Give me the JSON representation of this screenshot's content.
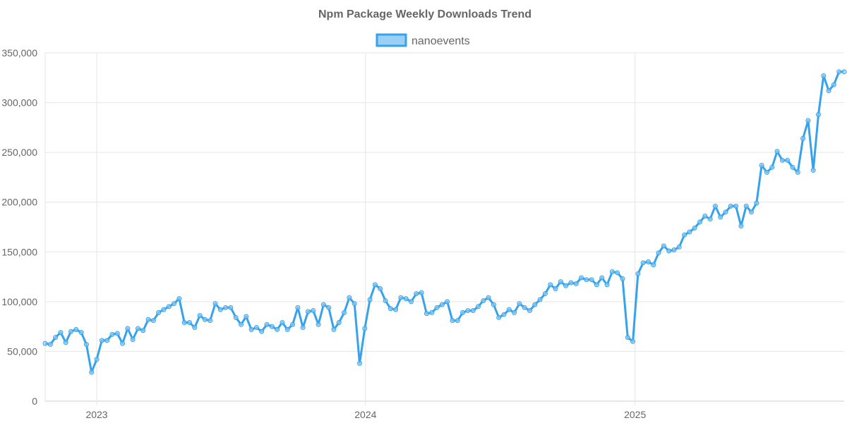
{
  "chart_data": {
    "type": "line",
    "title": "Npm Package Weekly Downloads Trend",
    "xlabel": "",
    "ylabel": "",
    "legend": {
      "position": "top",
      "entries": [
        "nanoevents"
      ]
    },
    "grid": true,
    "ylim": [
      0,
      350000
    ],
    "yticks": [
      "0",
      "50,000",
      "100,000",
      "150,000",
      "200,000",
      "250,000",
      "300,000",
      "350,000"
    ],
    "ytick_values": [
      0,
      50000,
      100000,
      150000,
      200000,
      250000,
      300000,
      350000
    ],
    "xticks": [
      {
        "label": "2023",
        "date": "2023-01-01"
      },
      {
        "label": "2024",
        "date": "2024-01-01"
      },
      {
        "label": "2025",
        "date": "2025-01-01"
      }
    ],
    "xlim": [
      "2022-10-23",
      "2025-10-12"
    ],
    "colors": {
      "line": "#36a2eb",
      "fill": "#9ad0f5",
      "grid": "#e5e5e5",
      "text": "#666666"
    },
    "x": [
      "2022-10-23",
      "2022-10-30",
      "2022-11-06",
      "2022-11-13",
      "2022-11-20",
      "2022-11-27",
      "2022-12-04",
      "2022-12-11",
      "2022-12-18",
      "2022-12-25",
      "2023-01-01",
      "2023-01-08",
      "2023-01-15",
      "2023-01-22",
      "2023-01-29",
      "2023-02-05",
      "2023-02-12",
      "2023-02-19",
      "2023-02-26",
      "2023-03-05",
      "2023-03-12",
      "2023-03-19",
      "2023-03-26",
      "2023-04-02",
      "2023-04-09",
      "2023-04-16",
      "2023-04-23",
      "2023-04-30",
      "2023-05-07",
      "2023-05-14",
      "2023-05-21",
      "2023-05-28",
      "2023-06-04",
      "2023-06-11",
      "2023-06-18",
      "2023-06-25",
      "2023-07-02",
      "2023-07-09",
      "2023-07-16",
      "2023-07-23",
      "2023-07-30",
      "2023-08-06",
      "2023-08-13",
      "2023-08-20",
      "2023-08-27",
      "2023-09-03",
      "2023-09-10",
      "2023-09-17",
      "2023-09-24",
      "2023-10-01",
      "2023-10-08",
      "2023-10-15",
      "2023-10-22",
      "2023-10-29",
      "2023-11-05",
      "2023-11-12",
      "2023-11-19",
      "2023-11-26",
      "2023-12-03",
      "2023-12-10",
      "2023-12-17",
      "2023-12-24",
      "2023-12-31",
      "2024-01-07",
      "2024-01-14",
      "2024-01-21",
      "2024-01-28",
      "2024-02-04",
      "2024-02-11",
      "2024-02-18",
      "2024-02-25",
      "2024-03-03",
      "2024-03-10",
      "2024-03-17",
      "2024-03-24",
      "2024-03-31",
      "2024-04-07",
      "2024-04-14",
      "2024-04-21",
      "2024-04-28",
      "2024-05-05",
      "2024-05-12",
      "2024-05-19",
      "2024-05-26",
      "2024-06-02",
      "2024-06-09",
      "2024-06-16",
      "2024-06-23",
      "2024-06-30",
      "2024-07-07",
      "2024-07-14",
      "2024-07-21",
      "2024-07-28",
      "2024-08-04",
      "2024-08-11",
      "2024-08-18",
      "2024-08-25",
      "2024-09-01",
      "2024-09-08",
      "2024-09-15",
      "2024-09-22",
      "2024-09-29",
      "2024-10-06",
      "2024-10-13",
      "2024-10-20",
      "2024-10-27",
      "2024-11-03",
      "2024-11-10",
      "2024-11-17",
      "2024-11-24",
      "2024-12-01",
      "2024-12-08",
      "2024-12-15",
      "2024-12-22",
      "2024-12-29",
      "2025-01-05",
      "2025-01-12",
      "2025-01-19",
      "2025-01-26",
      "2025-02-02",
      "2025-02-09",
      "2025-02-16",
      "2025-02-23",
      "2025-03-02",
      "2025-03-09",
      "2025-03-16",
      "2025-03-23",
      "2025-03-30",
      "2025-04-06",
      "2025-04-13",
      "2025-04-20",
      "2025-04-27",
      "2025-05-04",
      "2025-05-11",
      "2025-05-18",
      "2025-05-25",
      "2025-06-01",
      "2025-06-08",
      "2025-06-15",
      "2025-06-22",
      "2025-06-29",
      "2025-07-06",
      "2025-07-13",
      "2025-07-20",
      "2025-07-27",
      "2025-08-03",
      "2025-08-10",
      "2025-08-17",
      "2025-08-24",
      "2025-08-31",
      "2025-09-07",
      "2025-09-14",
      "2025-09-21",
      "2025-09-28",
      "2025-10-05",
      "2025-10-12"
    ],
    "series": [
      {
        "name": "nanoevents",
        "values": [
          58000,
          57000,
          64000,
          69000,
          59000,
          70000,
          72000,
          69000,
          57000,
          29000,
          42000,
          61000,
          61000,
          67000,
          68000,
          58000,
          73000,
          62000,
          73000,
          71000,
          82000,
          81000,
          89000,
          92000,
          95000,
          98000,
          103000,
          79000,
          79000,
          74000,
          86000,
          82000,
          81000,
          98000,
          92000,
          94000,
          94000,
          84000,
          77000,
          85000,
          72000,
          74000,
          70000,
          77000,
          75000,
          72000,
          79000,
          72000,
          77000,
          94000,
          74000,
          90000,
          91000,
          77000,
          97000,
          94000,
          72000,
          79000,
          89000,
          104000,
          98000,
          38000,
          73000,
          102000,
          117000,
          113000,
          101000,
          93000,
          92000,
          104000,
          103000,
          100000,
          108000,
          109000,
          88000,
          89000,
          94000,
          97000,
          100000,
          81000,
          81000,
          89000,
          91000,
          91000,
          95000,
          101000,
          104000,
          97000,
          84000,
          87000,
          92000,
          89000,
          98000,
          94000,
          91000,
          97000,
          102000,
          108000,
          117000,
          113000,
          120000,
          116000,
          119000,
          118000,
          124000,
          122000,
          122000,
          117000,
          124000,
          117000,
          130000,
          129000,
          123000,
          64000,
          60000,
          128000,
          139000,
          140000,
          137000,
          149000,
          156000,
          151000,
          152000,
          155000,
          167000,
          170000,
          174000,
          180000,
          186000,
          183000,
          196000,
          185000,
          190000,
          196000,
          196000,
          176000,
          196000,
          190000,
          199000,
          237000,
          230000,
          235000,
          251000,
          242000,
          242000,
          235000,
          230000,
          264000,
          282000,
          232000,
          288000,
          327000,
          312000,
          318000,
          331000,
          331000
        ]
      }
    ]
  }
}
